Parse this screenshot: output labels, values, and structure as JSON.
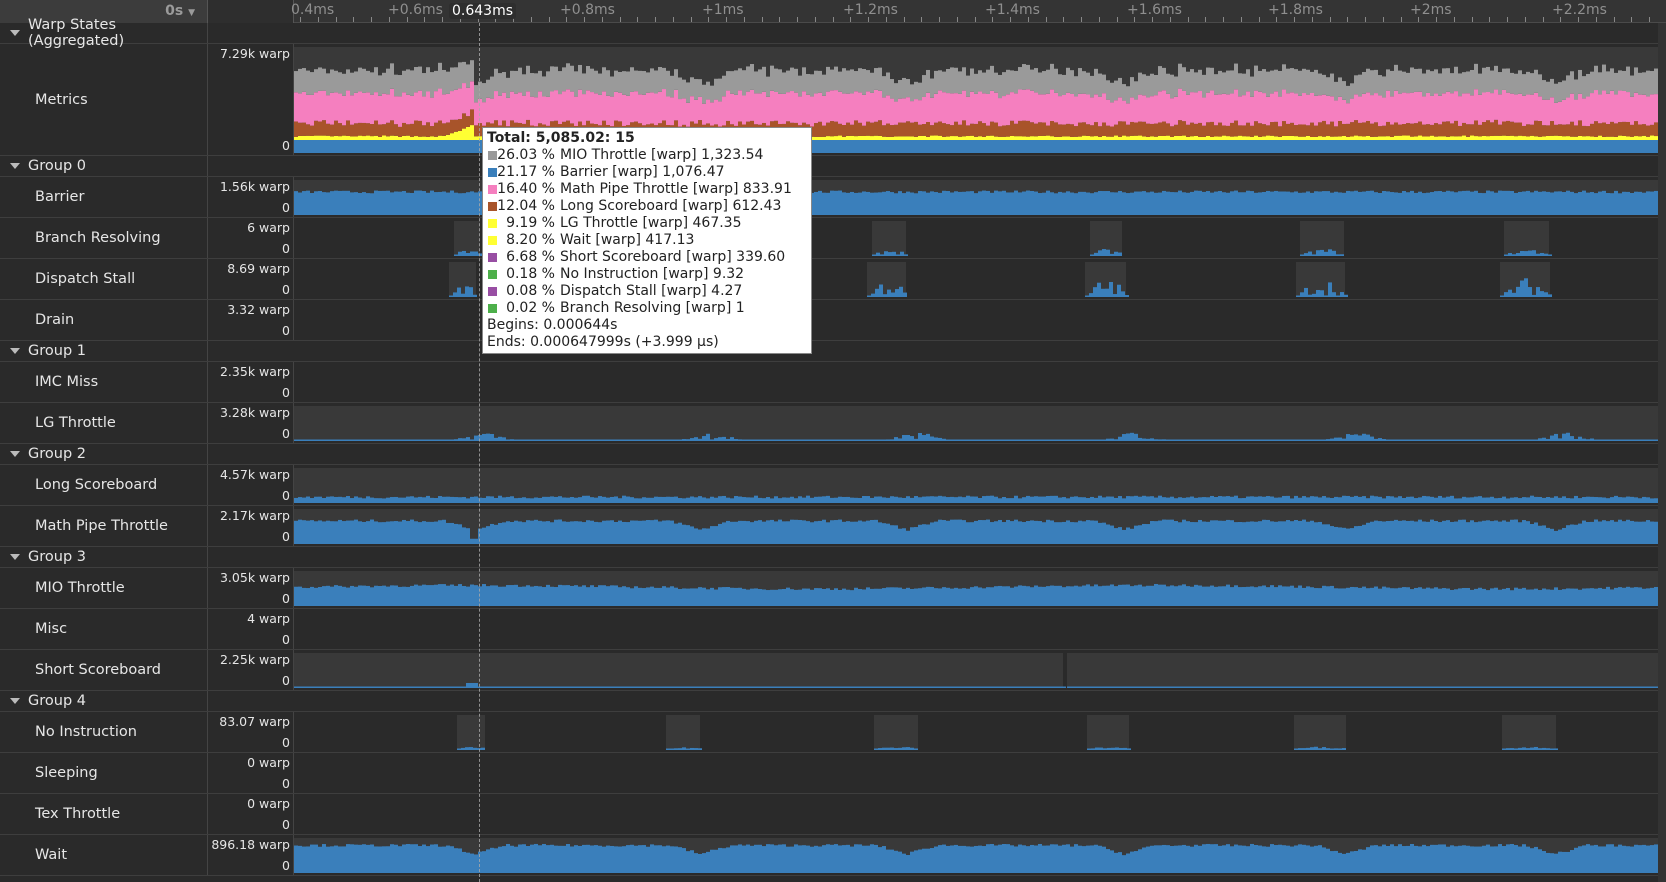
{
  "header": {
    "time_origin": "0s",
    "cursor_time": "0.643ms",
    "ticks": [
      "0.4ms",
      "+0.6ms",
      "+0.8ms",
      "+1ms",
      "+1.2ms",
      "+1.4ms",
      "+1.6ms",
      "+1.8ms",
      "+2ms",
      "+2.2ms"
    ]
  },
  "rows": [
    {
      "type": "group",
      "label": "Warp States (Aggregated)"
    },
    {
      "type": "metric",
      "label": "Metrics",
      "max": "7.29k warp",
      "min": "0",
      "profile": "stack"
    },
    {
      "type": "group",
      "label": "Group 0"
    },
    {
      "type": "metric",
      "label": "Barrier",
      "max": "1.56k warp",
      "min": "0",
      "profile": "barrier"
    },
    {
      "type": "metric",
      "label": "Branch Resolving",
      "max": "6 warp",
      "min": "0",
      "profile": "branch"
    },
    {
      "type": "metric",
      "label": "Dispatch Stall",
      "max": "8.69 warp",
      "min": "0",
      "profile": "dispatch"
    },
    {
      "type": "metric",
      "label": "Drain",
      "max": "3.32 warp",
      "min": "0",
      "profile": "none"
    },
    {
      "type": "group",
      "label": "Group 1"
    },
    {
      "type": "metric",
      "label": "IMC Miss",
      "max": "2.35k warp",
      "min": "0",
      "profile": "none"
    },
    {
      "type": "metric",
      "label": "LG Throttle",
      "max": "3.28k warp",
      "min": "0",
      "profile": "lg"
    },
    {
      "type": "group",
      "label": "Group 2"
    },
    {
      "type": "metric",
      "label": "Long Scoreboard",
      "max": "4.57k warp",
      "min": "0",
      "profile": "long"
    },
    {
      "type": "metric",
      "label": "Math Pipe Throttle",
      "max": "2.17k warp",
      "min": "0",
      "profile": "math"
    },
    {
      "type": "group",
      "label": "Group 3"
    },
    {
      "type": "metric",
      "label": "MIO Throttle",
      "max": "3.05k warp",
      "min": "0",
      "profile": "mio"
    },
    {
      "type": "metric",
      "label": "Misc",
      "max": "4 warp",
      "min": "0",
      "profile": "none"
    },
    {
      "type": "metric",
      "label": "Short Scoreboard",
      "max": "2.25k warp",
      "min": "0",
      "profile": "short"
    },
    {
      "type": "group",
      "label": "Group 4"
    },
    {
      "type": "metric",
      "label": "No Instruction",
      "max": "83.07 warp",
      "min": "0",
      "profile": "noinstr"
    },
    {
      "type": "metric",
      "label": "Sleeping",
      "max": "0 warp",
      "min": "0",
      "profile": "none"
    },
    {
      "type": "metric",
      "label": "Tex Throttle",
      "max": "0 warp",
      "min": "0",
      "profile": "none"
    },
    {
      "type": "metric",
      "label": "Wait",
      "max": "896.18 warp",
      "min": "0",
      "profile": "wait"
    }
  ],
  "tooltip": {
    "title": "Total: 5,085.02: 15",
    "items": [
      {
        "pct": "26.03 %",
        "text": "MIO Throttle [warp] 1,323.54",
        "color": "#9a9a9a"
      },
      {
        "pct": "21.17 %",
        "text": "Barrier [warp] 1,076.47",
        "color": "#3a7fbb"
      },
      {
        "pct": "16.40 %",
        "text": "Math Pipe Throttle [warp] 833.91",
        "color": "#f57fbf"
      },
      {
        "pct": "12.04 %",
        "text": "Long Scoreboard [warp] 612.43",
        "color": "#a8542a"
      },
      {
        "pct": "9.19 %",
        "text": "LG Throttle [warp] 467.35",
        "color": "#ffff33"
      },
      {
        "pct": "8.20 %",
        "text": "Wait [warp] 417.13",
        "color": "#ffff33"
      },
      {
        "pct": "6.68 %",
        "text": "Short Scoreboard [warp] 339.60",
        "color": "#984ea3"
      },
      {
        "pct": "0.18 %",
        "text": "No Instruction [warp] 9.32",
        "color": "#4daf4a"
      },
      {
        "pct": "0.08 %",
        "text": "Dispatch Stall [warp] 4.27",
        "color": "#984ea3"
      },
      {
        "pct": "0.02 %",
        "text": "Branch Resolving [warp] 1",
        "color": "#4daf4a"
      }
    ],
    "begins": "Begins: 0.000644s",
    "ends": "Ends: 0.000647999s (+3.999 µs)"
  },
  "colors": {
    "bar": "#3a7fbb",
    "band": "#393939",
    "bg": "#2a2a2a"
  }
}
